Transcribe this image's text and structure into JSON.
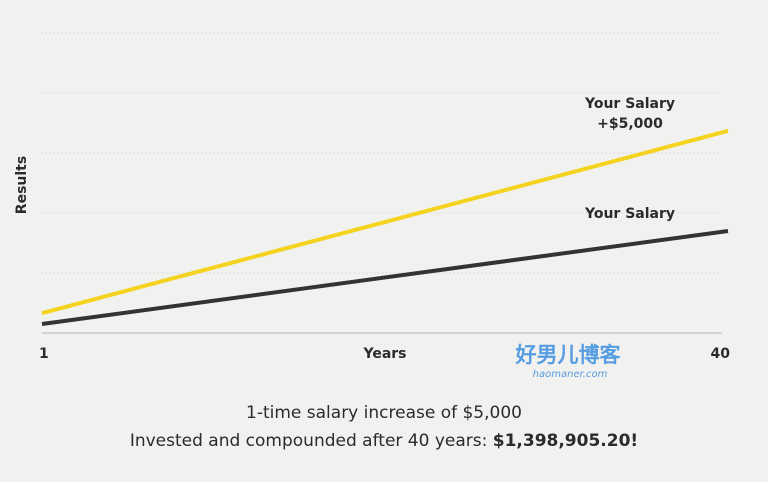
{
  "chart_data": {
    "type": "line",
    "ylabel": "Results",
    "xlabel": "Years",
    "x": [
      1,
      40
    ],
    "xlim": [
      1,
      40
    ],
    "xticks": [
      1,
      40
    ],
    "ylim": [
      0,
      5
    ],
    "yticks": [
      0,
      1,
      2,
      3,
      4,
      5
    ],
    "grid": true,
    "series": [
      {
        "name": "Your Salary\n+$5,000",
        "color": "#f4d31f",
        "values": [
          0.33,
          3.37
        ]
      },
      {
        "name": "Your Salary",
        "color": "#333333",
        "values": [
          0.15,
          1.7
        ]
      }
    ],
    "caption": "1-time salary increase of $5,000",
    "result": {
      "text": "Invested and compounded after 40 years: ",
      "highlight": "$1,398,905.20!"
    },
    "watermark": {
      "title": "好男儿博客",
      "url": "haomaner.com"
    }
  }
}
